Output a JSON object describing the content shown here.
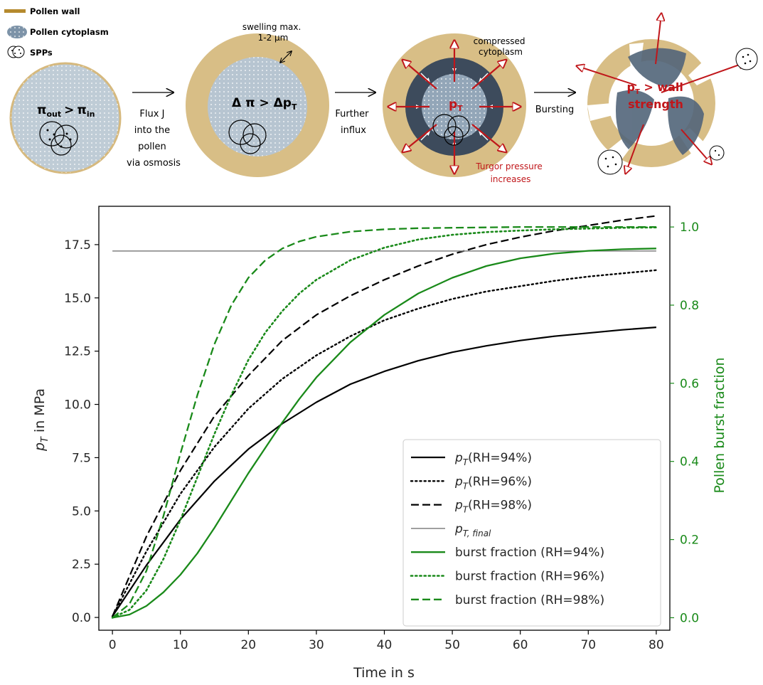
{
  "diagram": {
    "legend": {
      "wall": "Pollen wall",
      "cytoplasm": "Pollen cytoplasm",
      "spps": "SPPs"
    },
    "stage1": {
      "label_main": "π",
      "label_out": "out",
      "label_gt": ">",
      "label_pi2": "π",
      "label_in": "in"
    },
    "arrow1": {
      "lines": [
        "Flux J",
        "into the",
        "pollen",
        "via osmosis"
      ]
    },
    "stage2": {
      "swelling": [
        "swelling max.",
        "1-2 µm"
      ],
      "label_main": "Δ π > Δp",
      "label_sub": "T"
    },
    "arrow2": {
      "lines": [
        "Further",
        "influx"
      ]
    },
    "stage3": {
      "compressed": [
        "compressed",
        "cytoplasm"
      ],
      "label_main": "p",
      "label_sub": "T",
      "turgor": [
        "Turgor pressure",
        "increases"
      ]
    },
    "arrow3": {
      "lines": [
        "Bursting"
      ]
    },
    "stage4": {
      "label_line1_main": "p",
      "label_line1_sub": "T",
      "label_line1_rest": " > wall",
      "label_line2": "strength"
    },
    "colors": {
      "wall": "#d8be86",
      "cytoplasm": "#b7c5d1",
      "compressed": "#3d4b5c",
      "pressure_arrow": "#c0161a",
      "petal": "#52657a"
    }
  },
  "chart_data": {
    "type": "line",
    "xlabel": "Time in s",
    "ylabel_left_main": "p",
    "ylabel_left_sub": "T",
    "ylabel_left_rest": " in MPa",
    "ylabel_right": "Pollen burst fraction",
    "xlim": [
      -2,
      82
    ],
    "ylim_left": [
      -0.6,
      19.3
    ],
    "ylim_right": [
      -0.032,
      1.053
    ],
    "xticks": [
      0,
      10,
      20,
      30,
      40,
      50,
      60,
      70,
      80
    ],
    "xtick_labels": [
      "0",
      "10",
      "20",
      "30",
      "40",
      "50",
      "60",
      "70",
      "80"
    ],
    "yticks_left": [
      0,
      2.5,
      5,
      7.5,
      10,
      12.5,
      15,
      17.5
    ],
    "ytick_labels_left": [
      "0.0",
      "2.5",
      "5.0",
      "7.5",
      "10.0",
      "12.5",
      "15.0",
      "17.5"
    ],
    "yticks_right": [
      0,
      0.2,
      0.4,
      0.6,
      0.8,
      1.0
    ],
    "ytick_labels_right": [
      "0.0",
      "0.2",
      "0.4",
      "0.6",
      "0.8",
      "1.0"
    ],
    "legend_position": "lower right",
    "series": [
      {
        "name": "(RH=94%)",
        "math_main": "p",
        "math_sub": "T",
        "axis": "left",
        "color": "#000000",
        "style": "solid",
        "width": 2.2,
        "x": [
          0,
          5,
          10,
          15,
          20,
          25,
          30,
          35,
          40,
          45,
          50,
          55,
          60,
          65,
          70,
          75,
          80
        ],
        "y": [
          0.05,
          2.45,
          4.6,
          6.4,
          7.9,
          9.1,
          10.1,
          10.95,
          11.55,
          12.05,
          12.45,
          12.75,
          13.0,
          13.2,
          13.35,
          13.5,
          13.62
        ]
      },
      {
        "name": "(RH=96%)",
        "math_main": "p",
        "math_sub": "T",
        "axis": "left",
        "color": "#000000",
        "style": "dotted",
        "width": 2.4,
        "x": [
          0,
          5,
          10,
          15,
          20,
          25,
          30,
          35,
          40,
          45,
          50,
          55,
          60,
          65,
          70,
          75,
          80
        ],
        "y": [
          0.05,
          3.1,
          5.8,
          8.0,
          9.8,
          11.2,
          12.3,
          13.2,
          13.95,
          14.5,
          14.95,
          15.3,
          15.55,
          15.8,
          16.0,
          16.15,
          16.3
        ]
      },
      {
        "name": "(RH=98%)",
        "math_main": "p",
        "math_sub": "T",
        "axis": "left",
        "color": "#000000",
        "style": "dashed",
        "width": 2.2,
        "x": [
          0,
          5,
          10,
          15,
          20,
          25,
          30,
          35,
          40,
          45,
          50,
          55,
          60,
          65,
          70,
          75,
          80
        ],
        "y": [
          0.05,
          3.8,
          6.9,
          9.45,
          11.35,
          13.0,
          14.2,
          15.1,
          15.85,
          16.5,
          17.05,
          17.5,
          17.85,
          18.15,
          18.4,
          18.65,
          18.85
        ]
      },
      {
        "name": "",
        "math_main": "p",
        "math_sub": "T, final",
        "axis": "left",
        "color": "#808080",
        "style": "solid",
        "width": 1.5,
        "x": [
          0,
          80
        ],
        "y": [
          17.2,
          17.2
        ]
      },
      {
        "name": "burst fraction (RH=94%)",
        "axis": "right",
        "color": "#1a8a1a",
        "style": "solid",
        "width": 2.3,
        "x": [
          0,
          2.5,
          5,
          7.5,
          10,
          12.5,
          15,
          17.5,
          20,
          22.5,
          25,
          27.5,
          30,
          35,
          40,
          45,
          50,
          55,
          60,
          65,
          70,
          75,
          80
        ],
        "y": [
          0.0,
          0.008,
          0.03,
          0.065,
          0.11,
          0.165,
          0.23,
          0.3,
          0.37,
          0.435,
          0.5,
          0.56,
          0.615,
          0.705,
          0.775,
          0.83,
          0.87,
          0.9,
          0.92,
          0.932,
          0.939,
          0.943,
          0.945
        ]
      },
      {
        "name": "burst fraction (RH=96%)",
        "axis": "right",
        "color": "#1a8a1a",
        "style": "dotted",
        "width": 2.6,
        "x": [
          0,
          2.5,
          5,
          7.5,
          10,
          12.5,
          15,
          17.5,
          20,
          22.5,
          25,
          27.5,
          30,
          35,
          40,
          45,
          50,
          55,
          60,
          65,
          70,
          75,
          80
        ],
        "y": [
          0.0,
          0.02,
          0.07,
          0.15,
          0.25,
          0.36,
          0.47,
          0.57,
          0.66,
          0.73,
          0.785,
          0.83,
          0.865,
          0.915,
          0.947,
          0.968,
          0.98,
          0.987,
          0.991,
          0.994,
          0.996,
          0.998,
          0.999
        ]
      },
      {
        "name": "burst fraction (RH=98%)",
        "axis": "right",
        "color": "#1a8a1a",
        "style": "dashed",
        "width": 2.3,
        "x": [
          0,
          2.5,
          5,
          7.5,
          10,
          12.5,
          15,
          17.5,
          20,
          22.5,
          25,
          27.5,
          30,
          35,
          40,
          45,
          50,
          55,
          60,
          65,
          70,
          75,
          80
        ],
        "y": [
          0.0,
          0.035,
          0.12,
          0.26,
          0.42,
          0.57,
          0.7,
          0.8,
          0.87,
          0.915,
          0.945,
          0.963,
          0.975,
          0.988,
          0.994,
          0.997,
          0.998,
          0.999,
          1.0,
          1.0,
          1.0,
          1.0,
          1.0
        ]
      }
    ]
  }
}
